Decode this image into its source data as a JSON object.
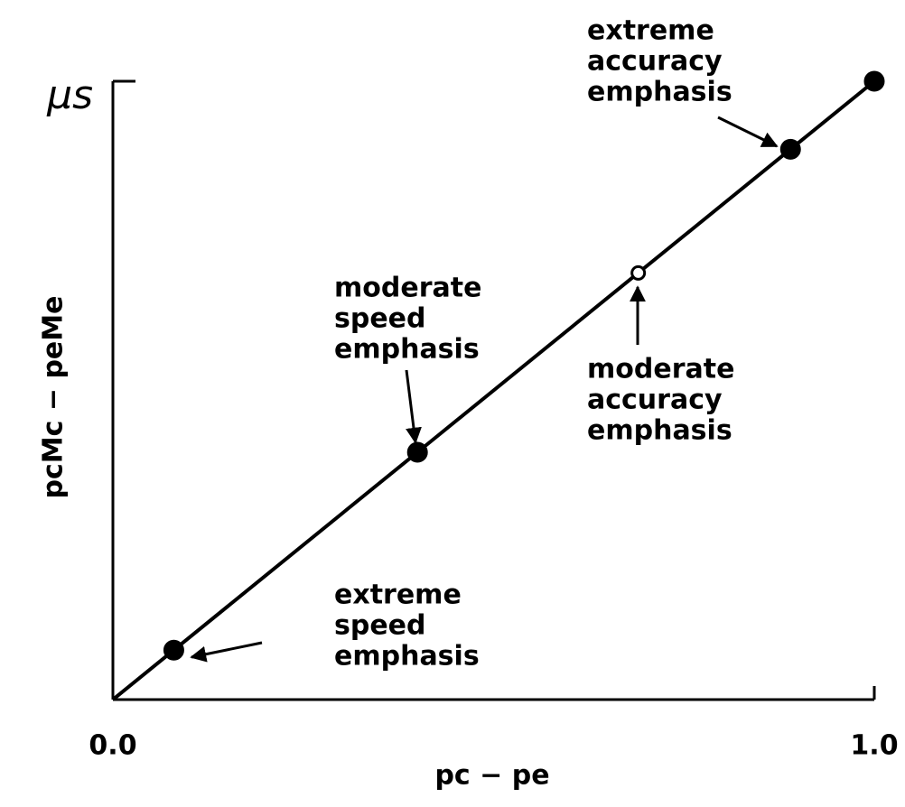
{
  "chart_data": {
    "type": "line",
    "x_label": "pc − pe",
    "y_label": "pcMc − peMe",
    "x": [
      0.08,
      0.4,
      0.69,
      0.89,
      1.0
    ],
    "series": [
      {
        "color": "#000000",
        "values": [
          0.08,
          0.4,
          0.69,
          0.89,
          1.0
        ],
        "marker_fill": [
          "filled",
          "filled",
          "open",
          "filled",
          "filled"
        ]
      }
    ],
    "xlim": [
      0,
      1
    ],
    "ylim": [
      0,
      1
    ],
    "xticks": [
      {
        "value": 0,
        "label": "0.0"
      },
      {
        "value": 1,
        "label": "1.0"
      }
    ],
    "yticks": [
      {
        "value": 1,
        "label": "μs"
      }
    ],
    "annotations": [
      {
        "lines": [
          "extreme",
          "accuracy",
          "emphasis"
        ]
      },
      {
        "lines": [
          "moderate",
          "speed",
          "emphasis"
        ]
      },
      {
        "lines": [
          "moderate",
          "accuracy",
          "emphasis"
        ]
      },
      {
        "lines": [
          "extreme",
          "speed",
          "emphasis"
        ]
      }
    ]
  }
}
